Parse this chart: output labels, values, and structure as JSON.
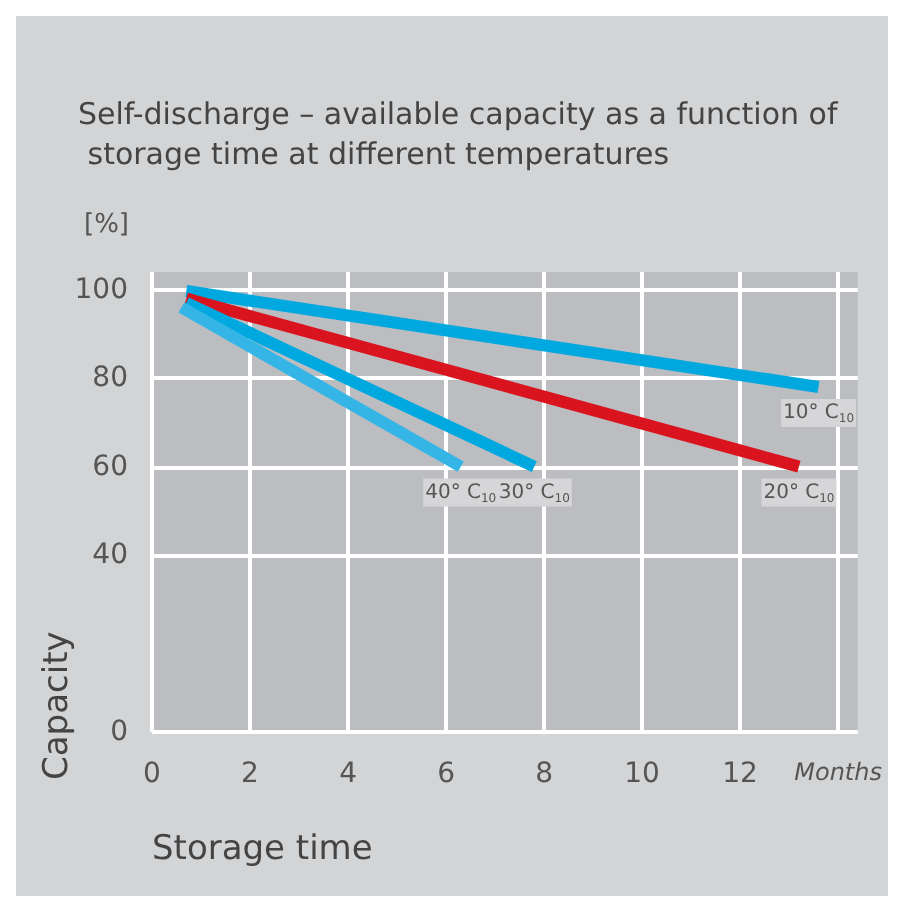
{
  "chart_data": {
    "type": "line",
    "title": "Self-discharge – available capacity as a function of storage time at different temperatures",
    "xlabel": "Storage time",
    "ylabel": "Capacity",
    "annotations": [
      "[%]"
    ],
    "series": [
      {
        "name": "10° C$_{10}$",
        "color": "#00a8e0",
        "x": [
          0.7,
          13.6
        ],
        "values": [
          99.7,
          78
        ]
      },
      {
        "name": "20° C$_{10}$",
        "color": "#d9141e",
        "x": [
          0.7,
          13.2
        ],
        "values": [
          98,
          60
        ]
      },
      {
        "name": "30° C$_{10}$",
        "color": "#00a8e0",
        "x": [
          0.7,
          7.8
        ],
        "values": [
          97,
          60
        ]
      },
      {
        "name": "40° C$_{10}$",
        "color": "#35b5e5",
        "x": [
          0.6,
          6.3
        ],
        "values": [
          96,
          60
        ]
      }
    ],
    "xlim": [
      0,
      14.4
    ],
    "xticks": [
      0,
      2,
      4,
      6,
      8,
      10,
      12,
      {
        "value": 14,
        "label": "Months"
      }
    ],
    "ylim": [
      0,
      104
    ],
    "yticks": [
      0,
      40,
      60,
      80,
      100
    ],
    "grid": true,
    "legend": false,
    "marker": "none",
    "line_style": "solid"
  }
}
